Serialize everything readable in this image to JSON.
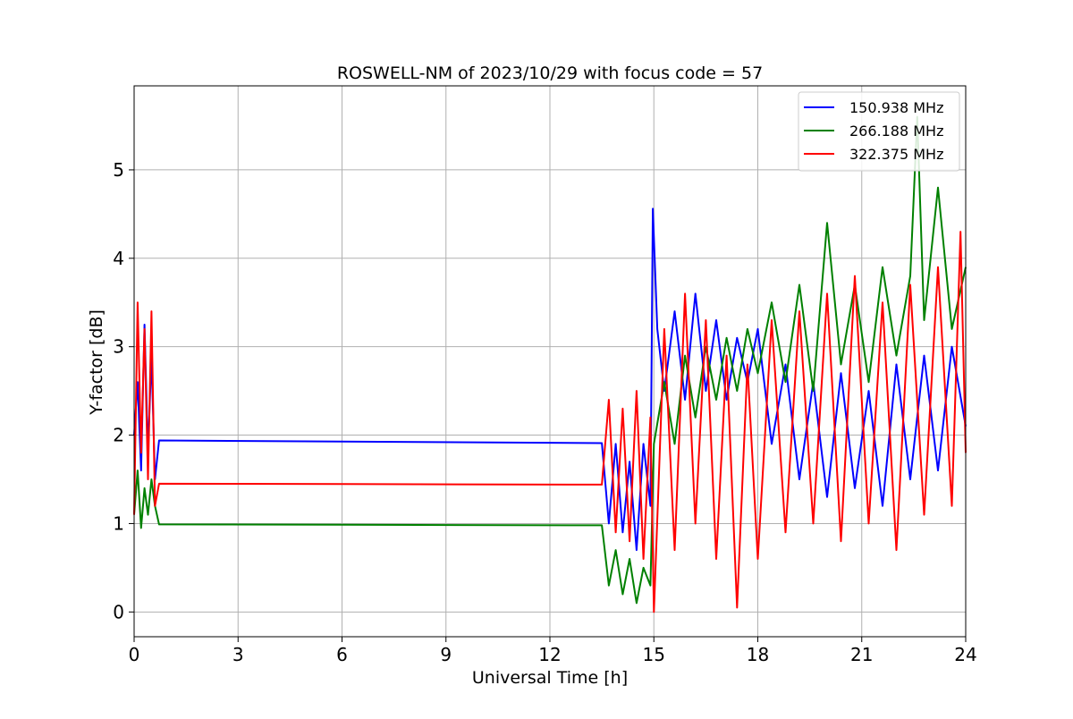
{
  "chart_data": {
    "type": "line",
    "title": "ROSWELL-NM of 2023/10/29 with focus code = 57",
    "xlabel": "Universal Time [h]",
    "ylabel": "Y-factor [dB]",
    "xlim": [
      0,
      24
    ],
    "ylim": [
      -0.28,
      5.95
    ],
    "xticks": [
      0,
      3,
      6,
      9,
      12,
      15,
      18,
      21,
      24
    ],
    "yticks": [
      0,
      1,
      2,
      3,
      4,
      5
    ],
    "grid": true,
    "legend_position": "top-right",
    "series": [
      {
        "name": "150.938 MHz",
        "color": "#0000ff",
        "x": [
          0.0,
          0.1,
          0.2,
          0.3,
          0.4,
          0.5,
          0.6,
          0.72,
          13.5,
          13.7,
          13.9,
          14.1,
          14.3,
          14.5,
          14.7,
          14.9,
          14.97,
          15.1,
          15.3,
          15.6,
          15.9,
          16.2,
          16.5,
          16.8,
          17.1,
          17.4,
          17.7,
          18.0,
          18.4,
          18.8,
          19.2,
          19.6,
          20.0,
          20.4,
          20.8,
          21.2,
          21.6,
          22.0,
          22.4,
          22.8,
          23.2,
          23.6,
          24.0
        ],
        "y": [
          2.0,
          2.6,
          1.6,
          3.25,
          1.8,
          2.9,
          1.5,
          1.94,
          1.91,
          1.0,
          1.9,
          0.9,
          1.7,
          0.7,
          1.9,
          1.2,
          4.56,
          3.2,
          2.5,
          3.4,
          2.4,
          3.6,
          2.5,
          3.3,
          2.4,
          3.1,
          2.6,
          3.2,
          1.9,
          2.8,
          1.5,
          2.6,
          1.3,
          2.7,
          1.4,
          2.5,
          1.2,
          2.8,
          1.5,
          2.9,
          1.6,
          3.0,
          2.1
        ]
      },
      {
        "name": "266.188 MHz",
        "color": "#008000",
        "x": [
          0.0,
          0.1,
          0.2,
          0.3,
          0.4,
          0.5,
          0.6,
          0.72,
          13.5,
          13.7,
          13.9,
          14.1,
          14.3,
          14.5,
          14.7,
          14.9,
          15.0,
          15.3,
          15.6,
          15.9,
          16.2,
          16.5,
          16.8,
          17.1,
          17.4,
          17.7,
          18.0,
          18.4,
          18.8,
          19.2,
          19.6,
          20.0,
          20.4,
          20.8,
          21.2,
          21.6,
          22.0,
          22.4,
          22.6,
          22.8,
          23.2,
          23.6,
          24.0
        ],
        "y": [
          1.1,
          1.6,
          0.95,
          1.4,
          1.1,
          1.5,
          1.2,
          0.99,
          0.98,
          0.3,
          0.7,
          0.2,
          0.6,
          0.1,
          0.5,
          0.3,
          1.9,
          2.6,
          1.9,
          2.9,
          2.2,
          3.0,
          2.4,
          3.1,
          2.5,
          3.2,
          2.7,
          3.5,
          2.6,
          3.7,
          2.5,
          4.4,
          2.8,
          3.7,
          2.6,
          3.9,
          2.9,
          3.8,
          5.6,
          3.3,
          4.8,
          3.2,
          3.9
        ]
      },
      {
        "name": "322.375 MHz",
        "color": "#ff0000",
        "x": [
          0.0,
          0.1,
          0.2,
          0.3,
          0.4,
          0.5,
          0.6,
          0.72,
          13.5,
          13.7,
          13.9,
          14.1,
          14.3,
          14.5,
          14.7,
          14.9,
          15.0,
          15.3,
          15.6,
          15.9,
          16.2,
          16.5,
          16.8,
          17.1,
          17.4,
          17.7,
          18.0,
          18.4,
          18.8,
          19.2,
          19.6,
          20.0,
          20.4,
          20.8,
          21.2,
          21.6,
          22.0,
          22.4,
          22.8,
          23.2,
          23.6,
          23.85,
          24.0
        ],
        "y": [
          1.1,
          3.5,
          1.8,
          3.2,
          1.5,
          3.4,
          1.2,
          1.45,
          1.44,
          2.4,
          0.9,
          2.3,
          0.8,
          2.5,
          0.6,
          2.2,
          0.0,
          3.2,
          0.7,
          3.6,
          1.0,
          3.3,
          0.6,
          2.9,
          0.05,
          2.8,
          0.6,
          3.3,
          0.9,
          3.4,
          1.0,
          3.6,
          0.8,
          3.8,
          1.0,
          3.5,
          0.7,
          3.7,
          1.1,
          3.9,
          1.2,
          4.3,
          1.8
        ]
      }
    ]
  }
}
